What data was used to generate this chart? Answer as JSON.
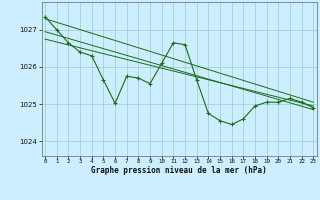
{
  "title": "Graphe pression niveau de la mer (hPa)",
  "bg_color": "#cceeff",
  "grid_color": "#99cccc",
  "line_color": "#1a6b1a",
  "x_ticks": [
    0,
    1,
    2,
    3,
    4,
    5,
    6,
    7,
    8,
    9,
    10,
    11,
    12,
    13,
    14,
    15,
    16,
    17,
    18,
    19,
    20,
    21,
    22,
    23
  ],
  "ylim": [
    1023.6,
    1027.75
  ],
  "yticks": [
    1024,
    1025,
    1026,
    1027
  ],
  "main_series": [
    1027.35,
    1027.0,
    1026.65,
    1026.4,
    1026.3,
    1025.65,
    1025.02,
    1025.75,
    1025.7,
    1025.55,
    1026.1,
    1026.65,
    1026.6,
    1025.65,
    1024.75,
    1024.55,
    1024.45,
    1024.6,
    1024.95,
    1025.05,
    1025.05,
    1025.15,
    1025.05,
    1024.9
  ],
  "trend1": [
    1027.3,
    1025.05
  ],
  "trend2": [
    1026.95,
    1024.85
  ],
  "trend3": [
    1026.75,
    1024.95
  ],
  "xlim": [
    -0.3,
    23.3
  ]
}
